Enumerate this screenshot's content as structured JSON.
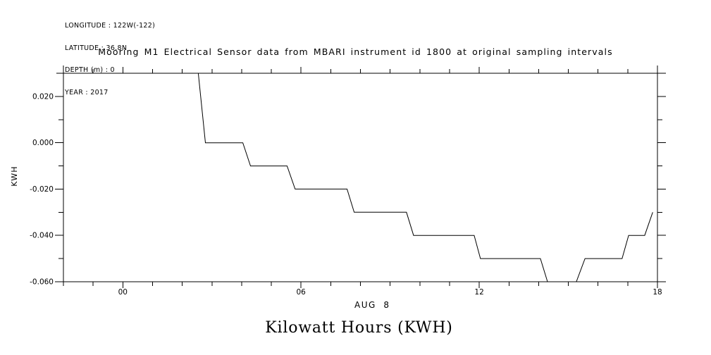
{
  "header": {
    "lines": [
      "LONGITUDE : 122W(-122)",
      "LATITUDE : 36.8N",
      "DEPTH (m) : 0",
      "YEAR : 2017"
    ]
  },
  "chart_data": {
    "type": "line",
    "title": "Mooring M1 Electrical Sensor data from MBARI instrument id 1800 at original sampling intervals",
    "xlabel": "AUG  8",
    "ylabel": "KWH",
    "footer_label": "Kilowatt Hours (KWH)",
    "line_color": "#000000",
    "xlim_hours": [
      -2,
      18
    ],
    "ylim": [
      -0.06,
      0.03
    ],
    "x_major_ticks": [
      {
        "t": 0,
        "label": "00"
      },
      {
        "t": 6,
        "label": "06"
      },
      {
        "t": 12,
        "label": "12"
      },
      {
        "t": 18,
        "label": "18"
      }
    ],
    "x_minor_tick_every_hours": 1,
    "y_major_ticks": [
      {
        "v": 0.02,
        "label": "0.020"
      },
      {
        "v": 0.0,
        "label": "0.000"
      },
      {
        "v": -0.02,
        "label": "-0.020"
      },
      {
        "v": -0.04,
        "label": "-0.040"
      },
      {
        "v": -0.06,
        "label": "-0.060"
      }
    ],
    "y_minor_ticks": [
      0.03,
      0.01,
      -0.01,
      -0.03,
      -0.05
    ],
    "points": [
      [
        2.54,
        0.03
      ],
      [
        2.78,
        0.0
      ],
      [
        4.04,
        0.0
      ],
      [
        4.3,
        -0.01
      ],
      [
        5.53,
        -0.01
      ],
      [
        5.8,
        -0.02
      ],
      [
        7.55,
        -0.02
      ],
      [
        7.79,
        -0.03
      ],
      [
        9.55,
        -0.03
      ],
      [
        9.79,
        -0.04
      ],
      [
        11.83,
        -0.04
      ],
      [
        12.04,
        -0.05
      ],
      [
        14.06,
        -0.05
      ],
      [
        14.3,
        -0.06
      ],
      [
        15.27,
        -0.06
      ],
      [
        15.56,
        -0.05
      ],
      [
        16.81,
        -0.05
      ],
      [
        17.03,
        -0.04
      ],
      [
        17.57,
        -0.04
      ],
      [
        17.84,
        -0.03
      ]
    ]
  }
}
